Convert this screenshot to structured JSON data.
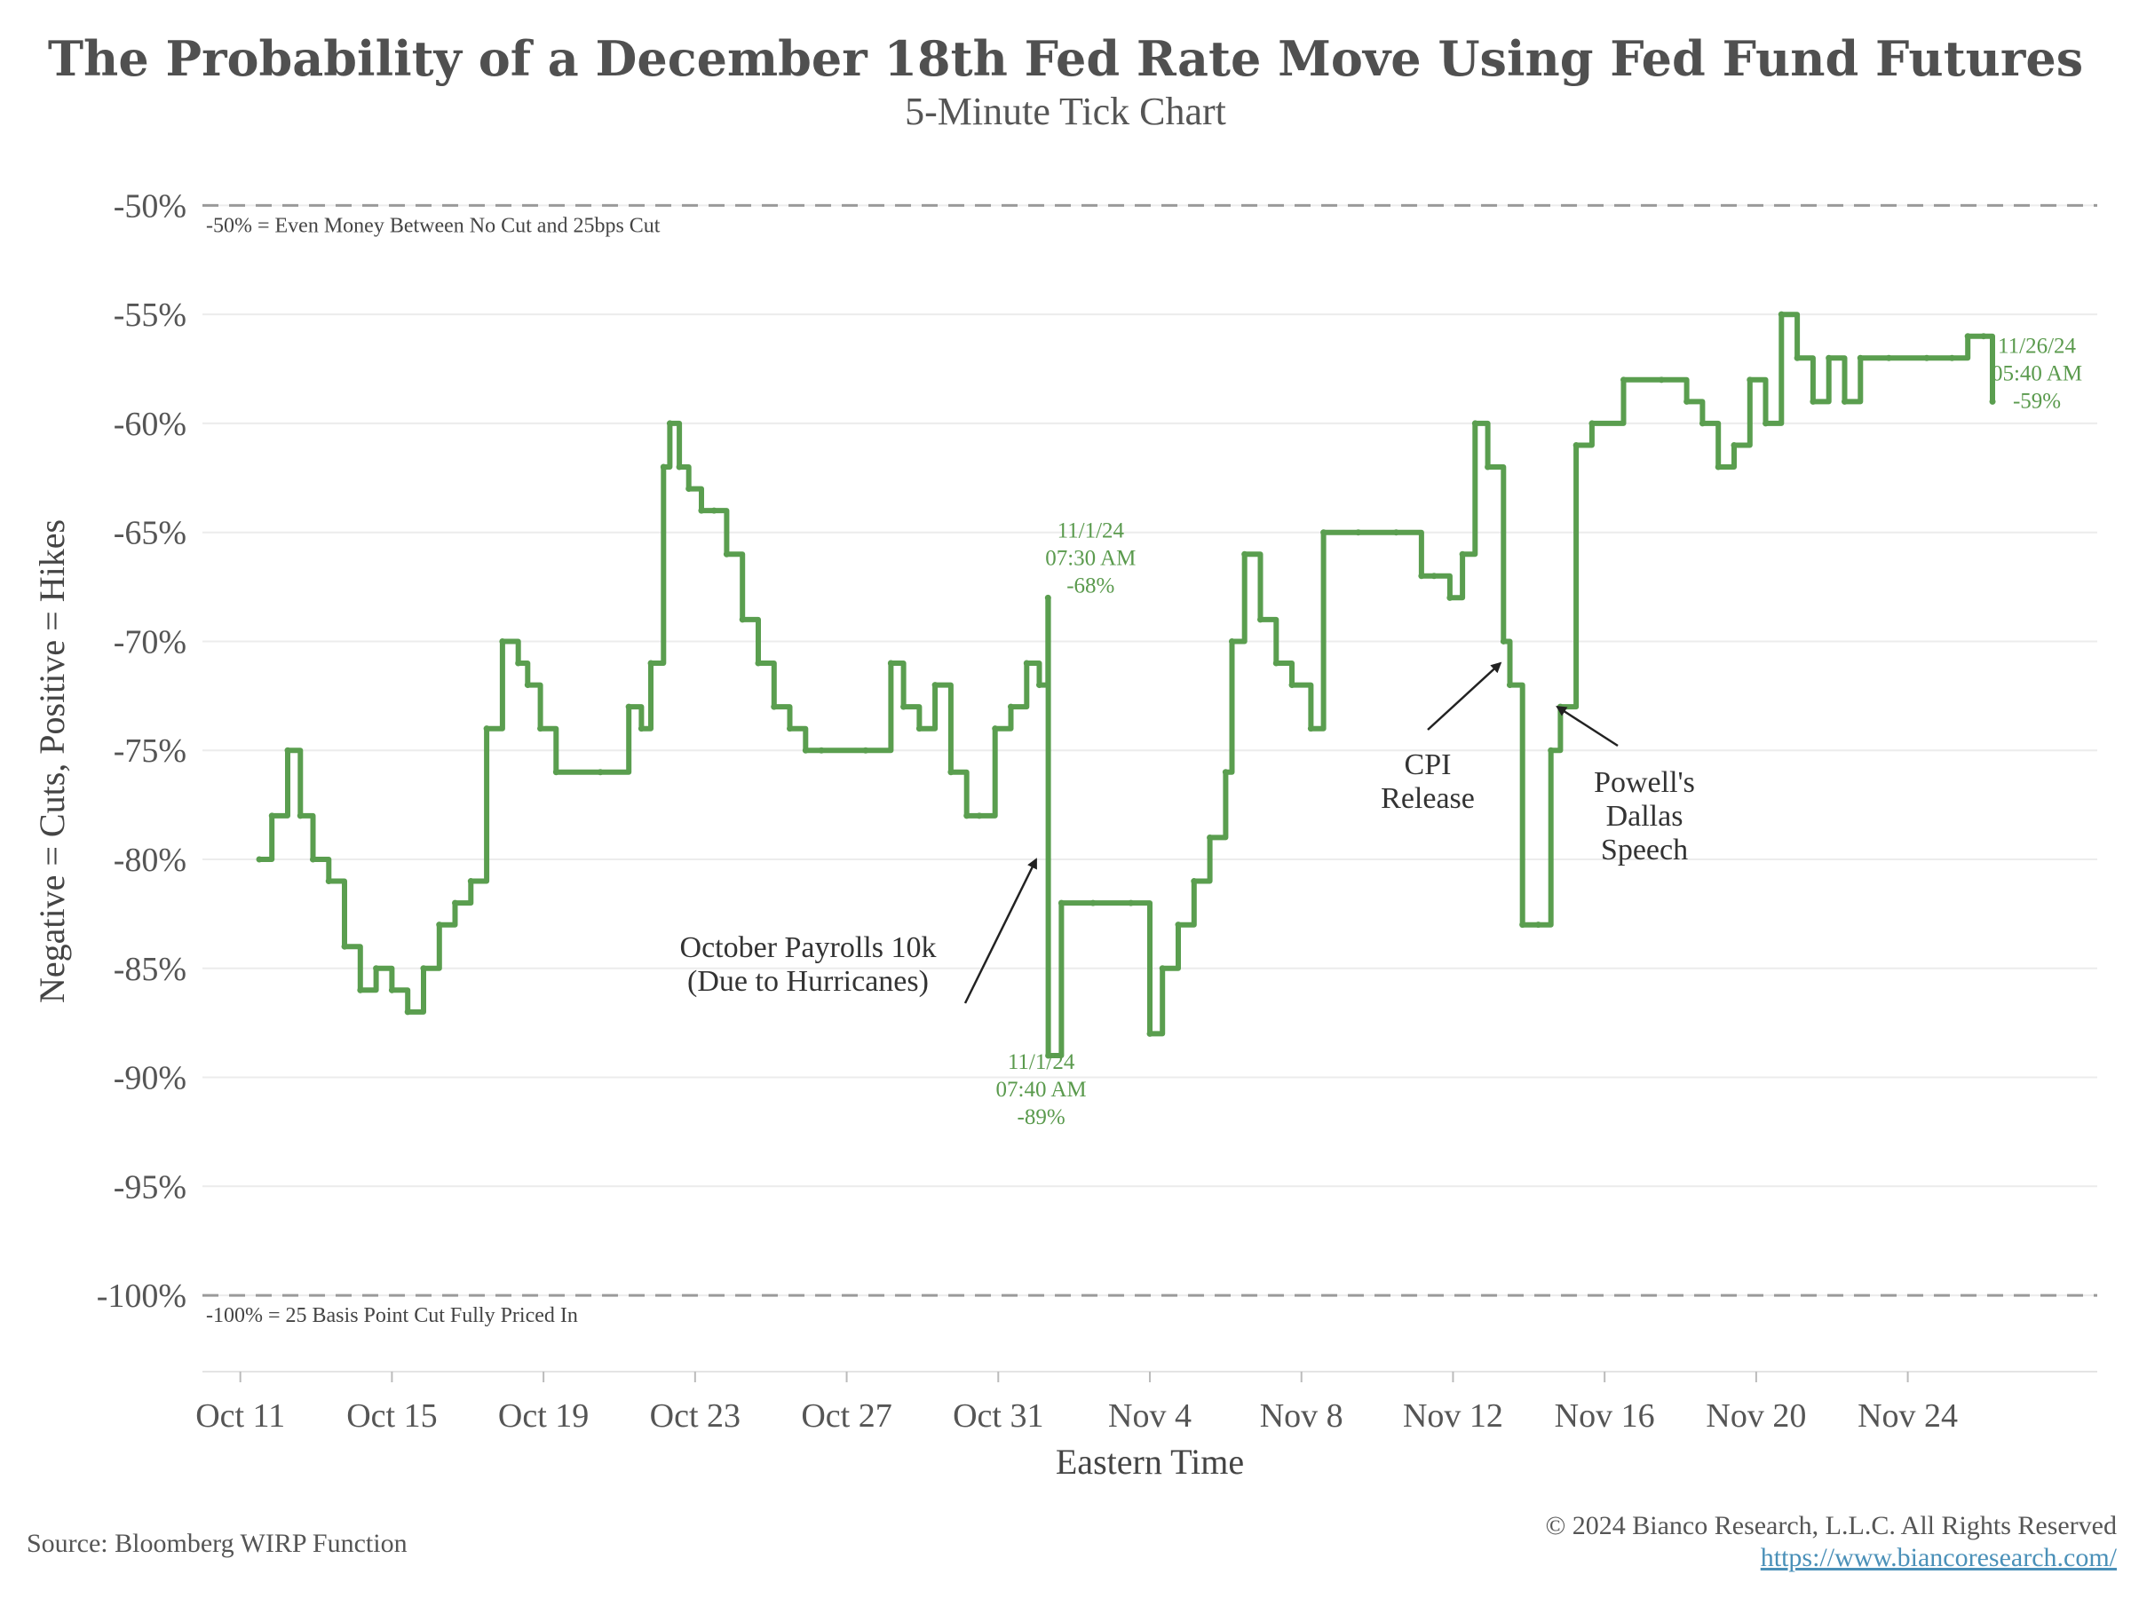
{
  "header": {
    "title": "The Probability of a December 18th Fed Rate Move Using Fed Fund Futures",
    "subtitle": "5-Minute Tick Chart"
  },
  "footer": {
    "source": "Source: Bloomberg WIRP Function",
    "copyright": "© 2024 Bianco Research, L.L.C. All Rights Reserved",
    "url": "https://www.biancoresearch.com/"
  },
  "chart_data": {
    "type": "line",
    "title": "The Probability of a December 18th Fed Rate Move Using Fed Fund Futures",
    "subtitle": "5-Minute Tick Chart",
    "xlabel": "Eastern Time",
    "ylabel": "Negative = Cuts, Positive = Hikes",
    "ylim": [
      -103.5,
      -47.5
    ],
    "y_ticks": [
      -50,
      -55,
      -60,
      -65,
      -70,
      -75,
      -80,
      -85,
      -90,
      -95,
      -100
    ],
    "y_tick_labels": [
      "-50%",
      "-55%",
      "-60%",
      "-65%",
      "-70%",
      "-75%",
      "-80%",
      "-85%",
      "-90%",
      "-95%",
      "-100%"
    ],
    "xlim": [
      "2024-10-10",
      "2024-11-29"
    ],
    "x_ticks": [
      "2024-10-11",
      "2024-10-15",
      "2024-10-19",
      "2024-10-23",
      "2024-10-27",
      "2024-10-31",
      "2024-11-04",
      "2024-11-08",
      "2024-11-12",
      "2024-11-16",
      "2024-11-20",
      "2024-11-24"
    ],
    "x_tick_labels": [
      "Oct 11",
      "Oct 15",
      "Oct 19",
      "Oct 23",
      "Oct 27",
      "Oct 31",
      "Nov 4",
      "Nov 8",
      "Nov 12",
      "Nov 16",
      "Nov 20",
      "Nov 24"
    ],
    "grid": true,
    "line_color": "#5a9e4f",
    "reference_lines": [
      {
        "y": -50,
        "label": "-50% = Even Money Between No Cut and 25bps Cut"
      },
      {
        "y": -100,
        "label": "-100% = 25 Basis Point Cut Fully Priced In"
      }
    ],
    "series": [
      {
        "x": [
          "2024-10-11 12:00",
          "2024-10-11 20:00",
          "2024-10-12 06:00",
          "2024-10-12 14:00",
          "2024-10-12 22:00",
          "2024-10-13 08:00",
          "2024-10-13 18:00",
          "2024-10-14 04:00",
          "2024-10-14 14:00",
          "2024-10-15 00:00",
          "2024-10-15 10:00",
          "2024-10-15 20:00",
          "2024-10-16 06:00",
          "2024-10-16 16:00",
          "2024-10-17 02:00",
          "2024-10-17 12:00",
          "2024-10-17 22:00",
          "2024-10-18 08:00",
          "2024-10-18 14:00",
          "2024-10-18 22:00",
          "2024-10-19 08:00",
          "2024-10-20 12:00",
          "2024-10-21 06:00",
          "2024-10-21 14:00",
          "2024-10-21 20:00",
          "2024-10-22 04:00",
          "2024-10-22 08:00",
          "2024-10-22 14:00",
          "2024-10-22 20:00",
          "2024-10-23 04:00",
          "2024-10-23 12:00",
          "2024-10-23 20:00",
          "2024-10-24 06:00",
          "2024-10-24 16:00",
          "2024-10-25 02:00",
          "2024-10-25 12:00",
          "2024-10-25 22:00",
          "2024-10-26 08:00",
          "2024-10-27 12:00",
          "2024-10-28 04:00",
          "2024-10-28 12:00",
          "2024-10-28 22:00",
          "2024-10-29 08:00",
          "2024-10-29 18:00",
          "2024-10-30 04:00",
          "2024-10-30 12:00",
          "2024-10-30 22:00",
          "2024-10-31 08:00",
          "2024-10-31 18:00",
          "2024-11-01 02:00",
          "2024-11-01 07:30",
          "2024-11-01 07:40",
          "2024-11-01 16:00",
          "2024-11-02 12:00",
          "2024-11-03 12:00",
          "2024-11-04 00:00",
          "2024-11-04 08:00",
          "2024-11-04 18:00",
          "2024-11-05 04:00",
          "2024-11-05 14:00",
          "2024-11-06 00:00",
          "2024-11-06 04:00",
          "2024-11-06 12:00",
          "2024-11-06 22:00",
          "2024-11-07 08:00",
          "2024-11-07 18:00",
          "2024-11-08 06:00",
          "2024-11-08 14:00",
          "2024-11-09 12:00",
          "2024-11-10 12:00",
          "2024-11-11 04:00",
          "2024-11-11 12:00",
          "2024-11-11 22:00",
          "2024-11-12 06:00",
          "2024-11-12 14:00",
          "2024-11-12 22:00",
          "2024-11-13 08:00",
          "2024-11-13 12:00",
          "2024-11-13 20:00",
          "2024-11-14 06:00",
          "2024-11-14 14:00",
          "2024-11-14 20:00",
          "2024-11-15 06:00",
          "2024-11-15 16:00",
          "2024-11-16 12:00",
          "2024-11-17 12:00",
          "2024-11-18 04:00",
          "2024-11-18 14:00",
          "2024-11-19 00:00",
          "2024-11-19 10:00",
          "2024-11-19 20:00",
          "2024-11-20 06:00",
          "2024-11-20 16:00",
          "2024-11-21 02:00",
          "2024-11-21 12:00",
          "2024-11-21 22:00",
          "2024-11-22 08:00",
          "2024-11-22 18:00",
          "2024-11-23 12:00",
          "2024-11-24 12:00",
          "2024-11-25 04:00",
          "2024-11-25 14:00",
          "2024-11-26 00:00",
          "2024-11-26 05:40"
        ],
        "values": [
          -80,
          -78,
          -75,
          -78,
          -80,
          -81,
          -84,
          -86,
          -85,
          -86,
          -87,
          -85,
          -83,
          -82,
          -81,
          -74,
          -70,
          -71,
          -72,
          -74,
          -76,
          -76,
          -73,
          -74,
          -71,
          -62,
          -60,
          -62,
          -63,
          -64,
          -64,
          -66,
          -69,
          -71,
          -73,
          -74,
          -75,
          -75,
          -75,
          -71,
          -73,
          -74,
          -72,
          -76,
          -78,
          -78,
          -74,
          -73,
          -71,
          -72,
          -68,
          -89,
          -82,
          -82,
          -82,
          -88,
          -85,
          -83,
          -81,
          -79,
          -76,
          -70,
          -66,
          -69,
          -71,
          -72,
          -74,
          -65,
          -65,
          -65,
          -67,
          -67,
          -68,
          -66,
          -60,
          -62,
          -70,
          -72,
          -83,
          -83,
          -75,
          -73,
          -61,
          -60,
          -58,
          -58,
          -59,
          -60,
          -62,
          -61,
          -58,
          -60,
          -55,
          -57,
          -59,
          -57,
          -59,
          -57,
          -57,
          -57,
          -57,
          -56,
          -56,
          -59
        ]
      }
    ],
    "annotations": [
      {
        "x": "2024-11-01 07:30",
        "y": -68,
        "lines": [
          "11/1/24",
          "07:30 AM",
          "-68%"
        ],
        "color": "#5a9a4d"
      },
      {
        "x": "2024-11-01 07:40",
        "y": -89,
        "lines": [
          "11/1/24",
          "07:40 AM",
          "-89%"
        ],
        "color": "#5a9a4d"
      },
      {
        "x": "2024-11-26 05:40",
        "y": -59,
        "lines": [
          "11/26/24",
          "05:40 AM",
          "-59%"
        ],
        "color": "#5a9a4d"
      },
      {
        "text_lines": [
          "October Payrolls 10k",
          "(Due to Hurricanes)"
        ],
        "arrow_to": {
          "x": "2024-11-01 00:00",
          "y": -80
        }
      },
      {
        "text_lines": [
          "CPI",
          "Release"
        ],
        "arrow_to": {
          "x": "2024-11-13 06:00",
          "y": -71
        }
      },
      {
        "text_lines": [
          "Powell's",
          "Dallas",
          "Speech"
        ],
        "arrow_to": {
          "x": "2024-11-14 18:00",
          "y": -73
        }
      }
    ]
  }
}
